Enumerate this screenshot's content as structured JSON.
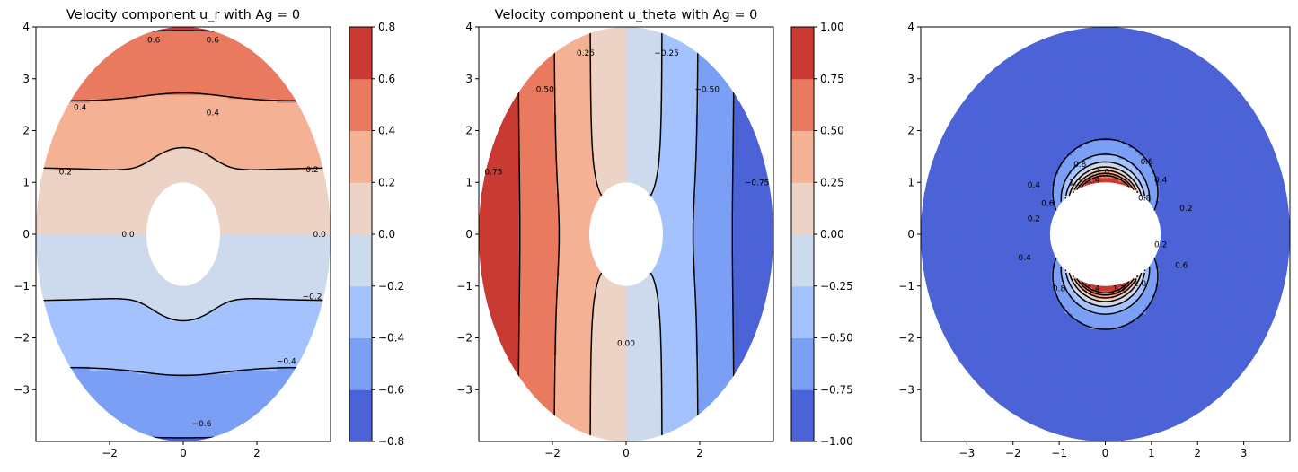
{
  "chart_data": [
    {
      "type": "contour",
      "title": "Velocity component u_r with Ag = 0",
      "field": "u_r",
      "xlim": [
        -4,
        4
      ],
      "ylim": [
        -4,
        4
      ],
      "x_ticks": [
        "−2",
        "0",
        "2"
      ],
      "y_ticks": [
        "4",
        "3",
        "2",
        "1",
        "0",
        "−1",
        "−2",
        "−3"
      ],
      "levels": [
        -0.8,
        -0.6,
        -0.4,
        -0.2,
        0.0,
        0.2,
        0.4,
        0.6,
        0.8
      ],
      "colorbar_ticks": [
        "0.8",
        "0.6",
        "0.4",
        "0.2",
        "0.0",
        "−0.2",
        "−0.4",
        "−0.6",
        "−0.8"
      ],
      "contour_labels": [
        {
          "text": "0.6",
          "x": -0.8,
          "y": 3.75
        },
        {
          "text": "0.6",
          "x": 0.8,
          "y": 3.75
        },
        {
          "text": "0.4",
          "x": -2.8,
          "y": 2.45
        },
        {
          "text": "0.4",
          "x": 0.8,
          "y": 2.35
        },
        {
          "text": "0.2",
          "x": -3.2,
          "y": 1.2
        },
        {
          "text": "0.2",
          "x": 3.5,
          "y": 1.25
        },
        {
          "text": "0.0",
          "x": -1.5,
          "y": 0.0
        },
        {
          "text": "0.0",
          "x": 3.7,
          "y": 0.0
        },
        {
          "text": "−0.2",
          "x": 3.5,
          "y": -1.2
        },
        {
          "text": "−0.4",
          "x": 2.8,
          "y": -2.45
        },
        {
          "text": "−0.6",
          "x": 0.5,
          "y": -3.65
        }
      ]
    },
    {
      "type": "contour",
      "title": "Velocity component u_theta with Ag = 0",
      "field": "u_theta",
      "xlim": [
        -4,
        4
      ],
      "ylim": [
        -4,
        4
      ],
      "x_ticks": [
        "−2",
        "0",
        "2"
      ],
      "y_ticks": [
        "4",
        "3",
        "2",
        "1",
        "0",
        "−1",
        "−2",
        "−3"
      ],
      "levels": [
        -1.0,
        -0.75,
        -0.5,
        -0.25,
        0.0,
        0.25,
        0.5,
        0.75,
        1.0
      ],
      "colorbar_ticks": [
        "1.00",
        "0.75",
        "0.50",
        "0.25",
        "0.00",
        "−0.25",
        "−0.50",
        "−0.75",
        "−1.00"
      ],
      "contour_labels": [
        {
          "text": "0.25",
          "x": -1.1,
          "y": 3.5
        },
        {
          "text": "0.50",
          "x": -2.2,
          "y": 2.8
        },
        {
          "text": "0.75",
          "x": -3.6,
          "y": 1.2
        },
        {
          "text": "−0.25",
          "x": 1.1,
          "y": 3.5
        },
        {
          "text": "−0.50",
          "x": 2.2,
          "y": 2.8
        },
        {
          "text": "−0.75",
          "x": 3.55,
          "y": 1.0
        },
        {
          "text": "0.00",
          "x": 0.0,
          "y": -2.1
        }
      ]
    },
    {
      "type": "contour",
      "title": "",
      "field": "magnitude",
      "xlim": [
        -4,
        4
      ],
      "ylim": [
        -4,
        4
      ],
      "x_ticks": [
        "−3",
        "−2",
        "−1",
        "0",
        "1",
        "2",
        "3"
      ],
      "y_ticks": [
        "4",
        "3",
        "2",
        "1",
        "0",
        "−1",
        "−2",
        "−3"
      ],
      "levels": [
        0.2,
        0.4,
        0.6,
        0.8,
        1.0,
        1.2,
        1.4
      ],
      "contour_labels": [
        {
          "text": "0.8",
          "x": -0.55,
          "y": 1.35
        },
        {
          "text": "1.0",
          "x": -0.05,
          "y": 1.2
        },
        {
          "text": "0.6",
          "x": 0.9,
          "y": 1.4
        },
        {
          "text": "0.4",
          "x": 1.2,
          "y": 1.05
        },
        {
          "text": "0.2",
          "x": 1.75,
          "y": 0.5
        },
        {
          "text": "0.4",
          "x": -1.55,
          "y": 0.95
        },
        {
          "text": "0.6",
          "x": -1.25,
          "y": 0.6
        },
        {
          "text": "0.2",
          "x": -1.55,
          "y": 0.3
        },
        {
          "text": "1.2",
          "x": -0.65,
          "y": 1.0
        },
        {
          "text": "1.4",
          "x": -0.25,
          "y": 1.05
        },
        {
          "text": "0.8",
          "x": 0.85,
          "y": 0.7
        },
        {
          "text": "0.2",
          "x": 1.2,
          "y": -0.2
        },
        {
          "text": "0.6",
          "x": 1.65,
          "y": -0.6
        },
        {
          "text": "0.4",
          "x": -1.75,
          "y": -0.45
        },
        {
          "text": "0.8",
          "x": -1.0,
          "y": -1.05
        },
        {
          "text": "1.4",
          "x": -0.25,
          "y": -1.05
        },
        {
          "text": "1.2",
          "x": 0.3,
          "y": -1.05
        },
        {
          "text": "1.0",
          "x": 0.75,
          "y": -0.95
        }
      ]
    }
  ]
}
